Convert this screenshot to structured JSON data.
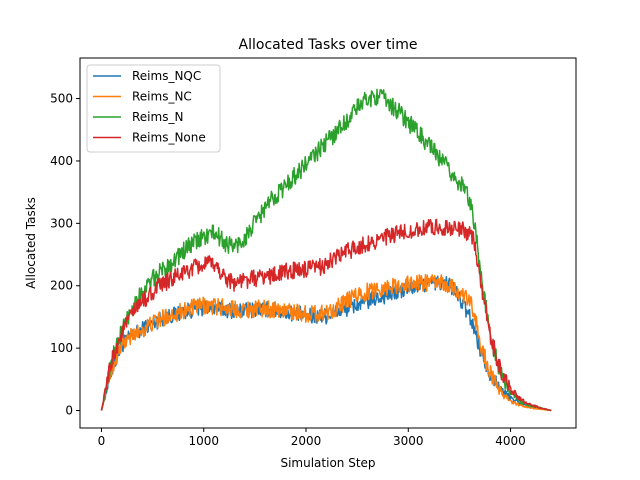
{
  "chart_data": {
    "type": "line",
    "title": "Allocated Tasks over time",
    "xlabel": "Simulation Step",
    "ylabel": "Allocated Tasks",
    "xlim": [
      -210,
      4640
    ],
    "ylim": [
      -28,
      565
    ],
    "xticks": [
      0,
      1000,
      2000,
      3000,
      4000
    ],
    "yticks": [
      0,
      100,
      200,
      300,
      400,
      500
    ],
    "legend": "top-left",
    "grid": false,
    "series": [
      {
        "name": "Reims_NQC",
        "color": "#1f77b4",
        "noise": 13,
        "x": [
          0,
          100,
          200,
          300,
          400,
          500,
          600,
          700,
          800,
          900,
          1000,
          1100,
          1200,
          1300,
          1400,
          1500,
          1600,
          1700,
          1800,
          1900,
          2000,
          2100,
          2200,
          2300,
          2400,
          2500,
          2600,
          2700,
          2800,
          2900,
          3000,
          3100,
          3200,
          3300,
          3400,
          3500,
          3600,
          3650,
          3700,
          3800,
          3900,
          4000,
          4100,
          4200,
          4300,
          4400
        ],
        "y": [
          0,
          65,
          105,
          120,
          130,
          140,
          148,
          153,
          158,
          162,
          165,
          165,
          162,
          160,
          160,
          162,
          163,
          160,
          158,
          155,
          152,
          150,
          152,
          158,
          163,
          170,
          175,
          180,
          185,
          190,
          195,
          200,
          203,
          205,
          203,
          180,
          150,
          130,
          100,
          60,
          35,
          20,
          12,
          6,
          3,
          0
        ]
      },
      {
        "name": "Reims_NC",
        "color": "#ff7f0e",
        "noise": 14,
        "x": [
          0,
          100,
          200,
          300,
          400,
          500,
          600,
          700,
          800,
          900,
          1000,
          1100,
          1200,
          1300,
          1400,
          1500,
          1600,
          1700,
          1800,
          1900,
          2000,
          2100,
          2200,
          2300,
          2400,
          2500,
          2600,
          2700,
          2800,
          2900,
          3000,
          3100,
          3200,
          3300,
          3400,
          3500,
          3600,
          3650,
          3700,
          3800,
          3900,
          4000,
          4100,
          4200,
          4300,
          4400
        ],
        "y": [
          0,
          70,
          105,
          120,
          130,
          140,
          148,
          155,
          160,
          165,
          168,
          167,
          165,
          163,
          162,
          163,
          163,
          162,
          160,
          158,
          155,
          155,
          158,
          165,
          175,
          185,
          190,
          195,
          198,
          200,
          203,
          205,
          205,
          205,
          200,
          190,
          175,
          150,
          110,
          60,
          30,
          15,
          8,
          4,
          2,
          0
        ]
      },
      {
        "name": "Reims_N",
        "color": "#2ca02c",
        "noise": 15,
        "x": [
          0,
          100,
          200,
          300,
          400,
          500,
          600,
          700,
          800,
          900,
          1000,
          1100,
          1200,
          1300,
          1400,
          1500,
          1600,
          1700,
          1800,
          1900,
          2000,
          2100,
          2200,
          2300,
          2400,
          2500,
          2600,
          2700,
          2800,
          2900,
          3000,
          3100,
          3200,
          3300,
          3400,
          3500,
          3600,
          3650,
          3700,
          3800,
          3900,
          4000,
          4100,
          4200,
          4300,
          4400
        ],
        "y": [
          0,
          80,
          130,
          165,
          190,
          210,
          225,
          240,
          255,
          268,
          278,
          285,
          270,
          262,
          275,
          300,
          325,
          345,
          360,
          378,
          395,
          412,
          430,
          448,
          465,
          485,
          500,
          505,
          495,
          480,
          462,
          445,
          425,
          405,
          385,
          365,
          340,
          300,
          230,
          120,
          60,
          30,
          15,
          8,
          4,
          0
        ]
      },
      {
        "name": "Reims_None",
        "color": "#d62728",
        "noise": 14,
        "x": [
          0,
          100,
          200,
          300,
          400,
          500,
          600,
          700,
          800,
          900,
          1000,
          1100,
          1200,
          1300,
          1400,
          1500,
          1600,
          1700,
          1800,
          1900,
          2000,
          2100,
          2200,
          2300,
          2400,
          2500,
          2600,
          2700,
          2800,
          2900,
          3000,
          3100,
          3200,
          3300,
          3400,
          3500,
          3600,
          3650,
          3700,
          3800,
          3900,
          4000,
          4100,
          4200,
          4300,
          4400
        ],
        "y": [
          0,
          80,
          125,
          155,
          175,
          190,
          203,
          212,
          220,
          228,
          233,
          235,
          215,
          205,
          208,
          212,
          215,
          218,
          222,
          225,
          225,
          228,
          235,
          245,
          255,
          262,
          268,
          273,
          278,
          283,
          287,
          290,
          293,
          295,
          293,
          290,
          285,
          270,
          210,
          120,
          65,
          35,
          18,
          9,
          4,
          0
        ]
      }
    ]
  }
}
